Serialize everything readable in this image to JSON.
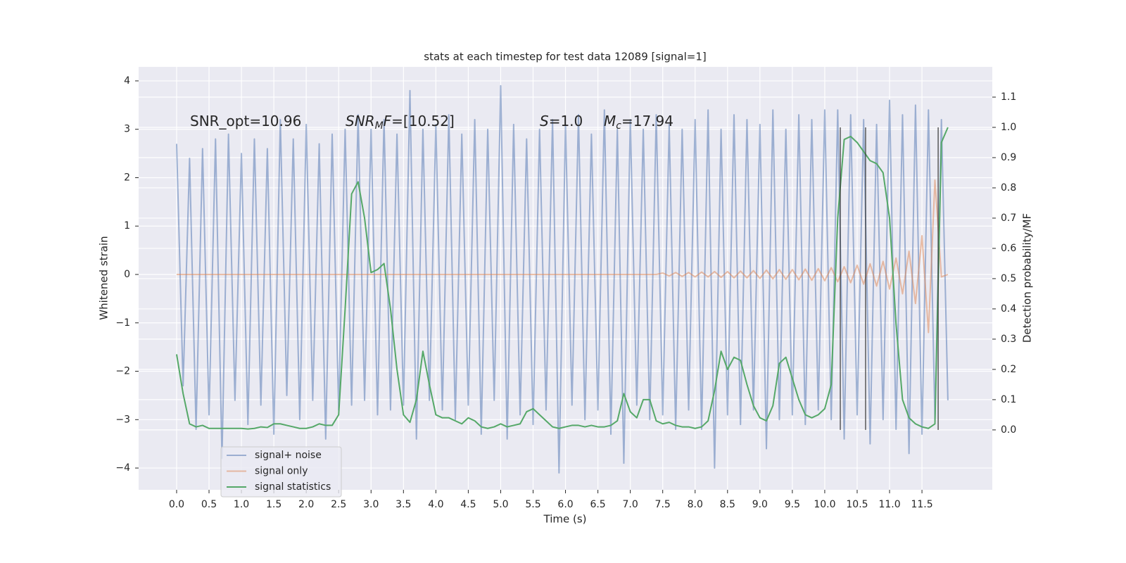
{
  "chart_data": {
    "type": "line",
    "title": "stats at each timestep for test data 12089 [signal=1]",
    "xlabel": "Time (s)",
    "ylabel": "Whitened strain",
    "y2label": "Detection probability/MF",
    "xlim": [
      -0.586,
      12.585
    ],
    "ylim": [
      -4.45,
      4.29
    ],
    "y2lim": [
      -0.198,
      1.2
    ],
    "xticks": [
      {
        "value": 0,
        "label": "0.0"
      },
      {
        "value": 0.5,
        "label": "0.5"
      },
      {
        "value": 1,
        "label": "1.0"
      },
      {
        "value": 1.5,
        "label": "1.5"
      },
      {
        "value": 2,
        "label": "2.0"
      },
      {
        "value": 2.5,
        "label": "2.5"
      },
      {
        "value": 3,
        "label": "3.0"
      },
      {
        "value": 3.5,
        "label": "3.5"
      },
      {
        "value": 4,
        "label": "4.0"
      },
      {
        "value": 4.5,
        "label": "4.5"
      },
      {
        "value": 5,
        "label": "5.0"
      },
      {
        "value": 5.5,
        "label": "5.5"
      },
      {
        "value": 6,
        "label": "6.0"
      },
      {
        "value": 6.5,
        "label": "6.5"
      },
      {
        "value": 7,
        "label": "7.0"
      },
      {
        "value": 7.5,
        "label": "7.5"
      },
      {
        "value": 8,
        "label": "8.0"
      },
      {
        "value": 8.5,
        "label": "8.5"
      },
      {
        "value": 9,
        "label": "9.0"
      },
      {
        "value": 9.5,
        "label": "9.5"
      },
      {
        "value": 10,
        "label": "10.0"
      },
      {
        "value": 10.5,
        "label": "10.5"
      },
      {
        "value": 11,
        "label": "11.0"
      },
      {
        "value": 11.5,
        "label": "11.5"
      }
    ],
    "yticks": [
      {
        "value": -4,
        "label": "−4"
      },
      {
        "value": -3,
        "label": "−3"
      },
      {
        "value": -2,
        "label": "−2"
      },
      {
        "value": -1,
        "label": "−1"
      },
      0,
      1,
      2,
      3,
      4
    ],
    "y2ticks": [
      {
        "value": 0,
        "label": "0.0"
      },
      {
        "value": 0.1,
        "label": "0.1"
      },
      {
        "value": 0.2,
        "label": "0.2"
      },
      {
        "value": 0.3,
        "label": "0.3"
      },
      {
        "value": 0.4,
        "label": "0.4"
      },
      {
        "value": 0.5,
        "label": "0.5"
      },
      {
        "value": 0.6,
        "label": "0.6"
      },
      {
        "value": 0.7,
        "label": "0.7"
      },
      {
        "value": 0.8,
        "label": "0.8"
      },
      {
        "value": 0.9,
        "label": "0.9"
      },
      {
        "value": 1,
        "label": "1.0"
      },
      {
        "value": 1.1,
        "label": "1.1"
      }
    ],
    "grid": true,
    "legend": "lower left",
    "x": [
      0,
      0.1,
      0.2,
      0.3,
      0.4,
      0.5,
      0.6,
      0.7,
      0.8,
      0.9,
      1,
      1.1,
      1.2,
      1.3,
      1.4,
      1.5,
      1.6,
      1.7,
      1.8,
      1.9,
      2,
      2.1,
      2.2,
      2.3,
      2.4,
      2.5,
      2.6,
      2.7,
      2.8,
      2.9,
      3,
      3.1,
      3.2,
      3.3,
      3.4,
      3.5,
      3.6,
      3.7,
      3.8,
      3.9,
      4,
      4.1,
      4.2,
      4.3,
      4.4,
      4.5,
      4.6,
      4.7,
      4.8,
      4.9,
      5,
      5.1,
      5.2,
      5.3,
      5.4,
      5.5,
      5.6,
      5.7,
      5.8,
      5.9,
      6,
      6.1,
      6.2,
      6.3,
      6.4,
      6.5,
      6.6,
      6.7,
      6.8,
      6.9,
      7,
      7.1,
      7.2,
      7.3,
      7.4,
      7.5,
      7.6,
      7.7,
      7.8,
      7.9,
      8,
      8.1,
      8.2,
      8.3,
      8.4,
      8.5,
      8.6,
      8.7,
      8.8,
      8.9,
      9,
      9.1,
      9.2,
      9.3,
      9.4,
      9.5,
      9.6,
      9.7,
      9.8,
      9.9,
      10,
      10.1,
      10.2,
      10.3,
      10.4,
      10.5,
      10.6,
      10.7,
      10.8,
      10.9,
      11,
      11.1,
      11.2,
      11.3,
      11.4,
      11.5,
      11.6,
      11.7,
      11.8,
      11.9
    ],
    "series": [
      {
        "name": "signal+ noise",
        "color": "#4c72b0",
        "values": [
          2.7,
          -2.3,
          2.4,
          -3.2,
          2.6,
          -2.9,
          2.8,
          -3.8,
          2.9,
          -2.6,
          2.5,
          -3.1,
          2.8,
          -2.7,
          2.6,
          -3.3,
          3.2,
          -2.5,
          2.8,
          -3.0,
          3.1,
          -2.6,
          2.7,
          -3.4,
          2.9,
          -2.8,
          3.0,
          -2.7,
          3.3,
          -2.6,
          3.0,
          -2.9,
          3.2,
          -2.8,
          2.9,
          -2.7,
          3.8,
          -3.4,
          3.0,
          -2.6,
          3.1,
          -2.8,
          3.3,
          -3.0,
          2.9,
          -2.7,
          3.2,
          -3.3,
          3.0,
          -2.6,
          3.9,
          -3.4,
          3.1,
          -2.9,
          2.8,
          -3.1,
          3.0,
          -2.8,
          3.2,
          -4.1,
          3.1,
          -2.7,
          3.3,
          -3.0,
          2.9,
          -2.8,
          3.4,
          -3.3,
          3.0,
          -3.9,
          3.2,
          -2.7,
          3.0,
          -3.0,
          3.3,
          -2.9,
          3.1,
          -3.2,
          3.0,
          -2.8,
          3.2,
          -3.2,
          3.4,
          -4.0,
          3.0,
          -2.9,
          3.3,
          -3.1,
          3.2,
          -2.8,
          3.1,
          -3.6,
          3.4,
          -3.0,
          3.0,
          -2.9,
          3.3,
          -3.1,
          3.2,
          -2.8,
          3.4,
          -3.0,
          3.4,
          -3.4,
          3.3,
          -2.9,
          3.2,
          -3.5,
          3.1,
          -3.0,
          3.6,
          -3.2,
          3.3,
          -3.7,
          3.5,
          -3.3,
          3.4,
          -3.0,
          3.2,
          -2.6
        ]
      },
      {
        "name": "signal only",
        "color": "#dd8452",
        "values": [
          0,
          0,
          0,
          0,
          0,
          0,
          0,
          0,
          0,
          0,
          0,
          0,
          0,
          0,
          0,
          0,
          0,
          0,
          0,
          0,
          0,
          0,
          0,
          0,
          0,
          0,
          0,
          0,
          0,
          0,
          0,
          0,
          0,
          0,
          0,
          0,
          0,
          0,
          0,
          0,
          0,
          0,
          0,
          0,
          0,
          0,
          0,
          0,
          0,
          0,
          0,
          0,
          0,
          0,
          0,
          0,
          0,
          0,
          0,
          0,
          0,
          0,
          0,
          0,
          0,
          0,
          0,
          0,
          0,
          0,
          0,
          0,
          0,
          0,
          0,
          0.03,
          -0.03,
          0.04,
          -0.04,
          0.04,
          -0.05,
          0.05,
          -0.05,
          0.06,
          -0.06,
          0.06,
          -0.07,
          0.07,
          -0.07,
          0.08,
          -0.08,
          0.09,
          -0.09,
          0.1,
          -0.1,
          0.1,
          -0.11,
          0.11,
          -0.12,
          0.12,
          -0.13,
          0.14,
          -0.15,
          0.16,
          -0.17,
          0.19,
          -0.2,
          0.22,
          -0.24,
          0.27,
          -0.3,
          0.34,
          -0.4,
          0.48,
          -0.6,
          0.8,
          -1.2,
          1.95,
          -0.05,
          0.0
        ]
      },
      {
        "name": "signal statistics",
        "color": "#55a868",
        "axis": "y2",
        "values": [
          0.25,
          0.12,
          0.02,
          0.01,
          0.015,
          0.005,
          0.005,
          0.005,
          0.005,
          0.005,
          0.005,
          0.003,
          0.005,
          0.01,
          0.008,
          0.02,
          0.02,
          0.015,
          0.01,
          0.005,
          0.005,
          0.01,
          0.02,
          0.015,
          0.015,
          0.05,
          0.4,
          0.78,
          0.82,
          0.7,
          0.52,
          0.53,
          0.55,
          0.4,
          0.2,
          0.05,
          0.025,
          0.1,
          0.26,
          0.15,
          0.05,
          0.04,
          0.04,
          0.03,
          0.02,
          0.04,
          0.03,
          0.01,
          0.005,
          0.01,
          0.02,
          0.01,
          0.015,
          0.02,
          0.06,
          0.07,
          0.05,
          0.03,
          0.01,
          0.005,
          0.01,
          0.015,
          0.015,
          0.01,
          0.015,
          0.01,
          0.01,
          0.015,
          0.03,
          0.12,
          0.06,
          0.04,
          0.1,
          0.1,
          0.03,
          0.02,
          0.025,
          0.015,
          0.01,
          0.01,
          0.005,
          0.01,
          0.03,
          0.13,
          0.26,
          0.2,
          0.24,
          0.23,
          0.15,
          0.08,
          0.04,
          0.03,
          0.08,
          0.22,
          0.24,
          0.17,
          0.1,
          0.05,
          0.04,
          0.05,
          0.07,
          0.15,
          0.7,
          0.96,
          0.97,
          0.95,
          0.92,
          0.89,
          0.88,
          0.85,
          0.7,
          0.35,
          0.1,
          0.04,
          0.02,
          0.01,
          0.005,
          0.02,
          0.95,
          1.0
        ]
      }
    ],
    "vlines": {
      "x": [
        10.24,
        10.63,
        11.75
      ],
      "ymin": 0,
      "ymax": 1,
      "color": "#333333"
    },
    "annotations": [
      {
        "parts": [
          {
            "text": "SNR_opt=10.96"
          }
        ]
      },
      {
        "parts": [
          {
            "text": "SNR",
            "italic": true
          },
          {
            "text": "M",
            "italic": true,
            "sub": true
          },
          {
            "text": "F",
            "italic": true
          },
          {
            "text": "=[10.52]"
          }
        ]
      },
      {
        "parts": [
          {
            "text": "S",
            "italic": true
          },
          {
            "text": "=1.0"
          }
        ]
      },
      {
        "parts": [
          {
            "text": "M",
            "italic": true
          },
          {
            "text": "c",
            "italic": true,
            "sub": true
          },
          {
            "text": "=17.94"
          }
        ]
      }
    ]
  }
}
